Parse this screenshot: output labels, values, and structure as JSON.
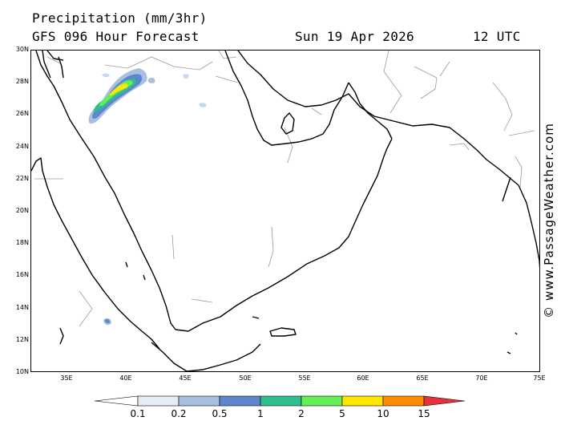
{
  "header": {
    "title": "Precipitation (mm/3hr)",
    "subtitle": "GFS 096 Hour Forecast",
    "date": "Sun 19 Apr 2026",
    "time": "12 UTC"
  },
  "map": {
    "lat_labels": [
      "30N",
      "28N",
      "26N",
      "24N",
      "22N",
      "20N",
      "18N",
      "16N",
      "14N",
      "12N",
      "10N"
    ],
    "lon_labels": [
      "35E",
      "40E",
      "45E",
      "50E",
      "55E",
      "60E",
      "65E",
      "70E",
      "75E"
    ],
    "lat_range": [
      10,
      30
    ],
    "lon_range": [
      32.5,
      75
    ],
    "coast_color": "#000000",
    "border_color": "#9a9a9a"
  },
  "legend": {
    "labels": [
      "0.1",
      "0.2",
      "0.5",
      "1",
      "2",
      "5",
      "10",
      "15"
    ],
    "colors": [
      "#ffffff",
      "#e6ecf6",
      "#a7bfe0",
      "#5e86cc",
      "#2fbf8e",
      "#66ee55",
      "#ffe600",
      "#ff8c00",
      "#e8303e"
    ]
  },
  "watermark": "© www.PassageWeather.com"
}
